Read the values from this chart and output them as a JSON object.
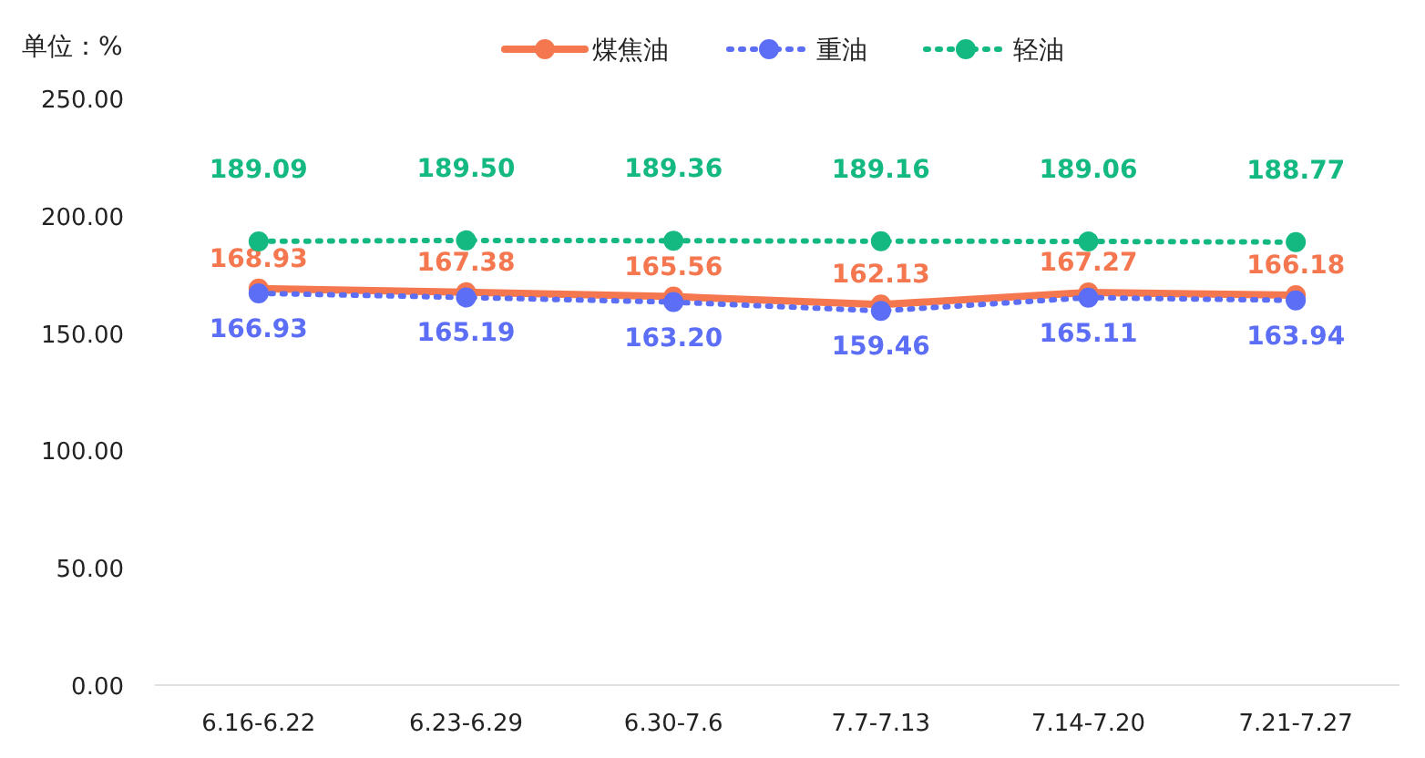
{
  "chart_data": {
    "type": "line",
    "ylabel": "单位：%",
    "categories": [
      "6.16-6.22",
      "6.23-6.29",
      "6.30-7.6",
      "7.7-7.13",
      "7.14-7.20",
      "7.21-7.27"
    ],
    "series": [
      {
        "name": "煤焦油",
        "color": "#f5774f",
        "line_style": "solid",
        "values": [
          168.93,
          167.38,
          165.56,
          162.13,
          167.27,
          166.18
        ],
        "value_labels": [
          "168.93",
          "167.38",
          "165.56",
          "162.13",
          "167.27",
          "166.18"
        ]
      },
      {
        "name": "重油",
        "color": "#5b6ef5",
        "line_style": "dotted",
        "values": [
          166.93,
          165.19,
          163.2,
          159.46,
          165.11,
          163.94
        ],
        "value_labels": [
          "166.93",
          "165.19",
          "163.20",
          "159.46",
          "165.11",
          "163.94"
        ]
      },
      {
        "name": "轻油",
        "color": "#14b982",
        "line_style": "dotted",
        "values": [
          189.09,
          189.5,
          189.36,
          189.16,
          189.06,
          188.77
        ],
        "value_labels": [
          "189.09",
          "189.50",
          "189.36",
          "189.16",
          "189.06",
          "188.77"
        ]
      }
    ],
    "ylim": [
      0,
      250
    ],
    "yticks": [
      {
        "value": 0,
        "label": "0.00"
      },
      {
        "value": 50,
        "label": "50.00"
      },
      {
        "value": 100,
        "label": "100.00"
      },
      {
        "value": 150,
        "label": "150.00"
      },
      {
        "value": 200,
        "label": "200.00"
      },
      {
        "value": 250,
        "label": "250.00"
      }
    ],
    "marker": "circle",
    "legend": "top",
    "grid": false
  }
}
